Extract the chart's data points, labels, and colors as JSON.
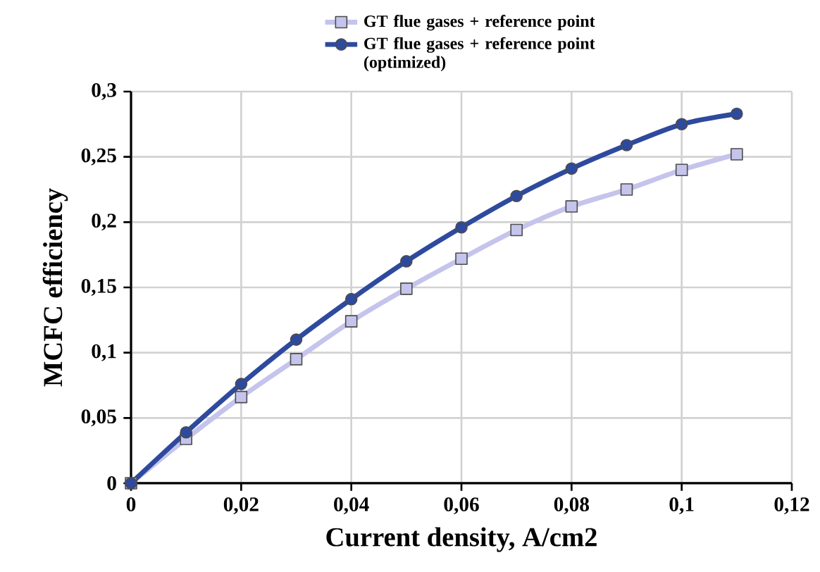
{
  "chart_data": {
    "type": "line",
    "xlabel": "Current density, A/cm2",
    "ylabel": "MCFC efficiency",
    "x": [
      0,
      0.01,
      0.02,
      0.03,
      0.04,
      0.05,
      0.06,
      0.07,
      0.08,
      0.09,
      0.1,
      0.11
    ],
    "series": [
      {
        "name": "GT flue gases + reference point",
        "color": "#c4c4ec",
        "marker": "square",
        "values": [
          0,
          0.034,
          0.066,
          0.095,
          0.124,
          0.149,
          0.172,
          0.194,
          0.212,
          0.225,
          0.24,
          0.252
        ]
      },
      {
        "name": "GT flue gases + reference point (optimized)",
        "color": "#2e4a9e",
        "marker": "circle",
        "values": [
          0,
          0.039,
          0.076,
          0.11,
          0.141,
          0.17,
          0.196,
          0.22,
          0.241,
          0.259,
          0.275,
          0.283
        ]
      }
    ],
    "xlim": [
      0,
      0.12
    ],
    "ylim": [
      0,
      0.3
    ],
    "xticks": [
      0,
      {
        "value": 0.02,
        "label": "0,02"
      },
      {
        "value": 0.04,
        "label": "0,04"
      },
      {
        "value": 0.06,
        "label": "0,06"
      },
      {
        "value": 0.08,
        "label": "0,08"
      },
      {
        "value": 0.1,
        "label": "0,1"
      },
      {
        "value": 0.12,
        "label": "0,12"
      }
    ],
    "yticks": [
      0,
      {
        "value": 0.05,
        "label": "0,05"
      },
      {
        "value": 0.1,
        "label": "0,1"
      },
      {
        "value": 0.15,
        "label": "0,15"
      },
      {
        "value": 0.2,
        "label": "0,2"
      },
      {
        "value": 0.25,
        "label": "0,25"
      },
      {
        "value": 0.3,
        "label": "0,3"
      }
    ],
    "grid": true,
    "legend": "top",
    "line_style": "solid"
  }
}
